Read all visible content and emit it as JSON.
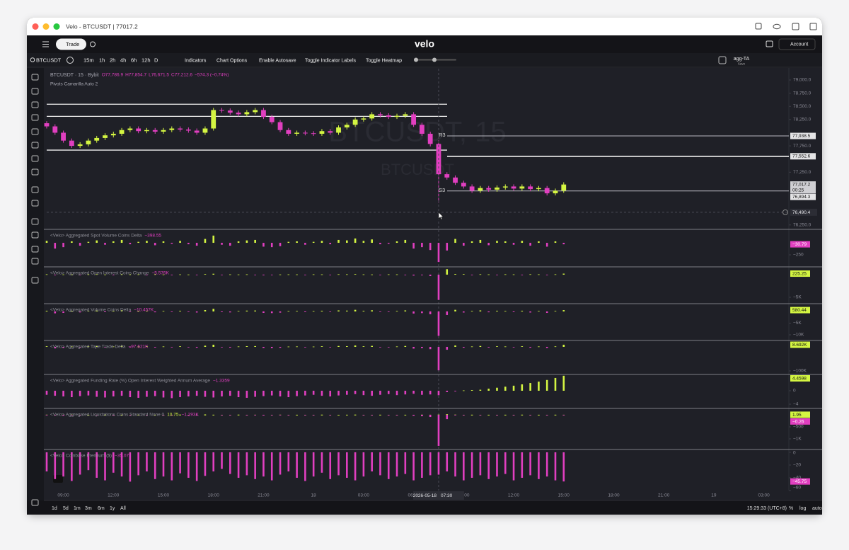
{
  "window": {
    "title": "Velo - BTCUSDT | 77017.2"
  },
  "header": {
    "trade": "Trade",
    "logo": "velo",
    "account": "Account"
  },
  "toolbar": {
    "symbol": "BTCUSDT",
    "intervals": [
      "15m",
      "1h",
      "2h",
      "4h",
      "6h",
      "12h",
      "D"
    ],
    "buttons": [
      "Indicators",
      "Chart Options",
      "Enable Autosave",
      "Toggle Indicator Labels",
      "Toggle Heatmap"
    ],
    "layout": "agg-TA",
    "save": "Save"
  },
  "chart_data": [
    {
      "type": "candlestick",
      "title": "BTCUSDT · 15 · Bybit",
      "legend": [
        "O77,786.9",
        "H77,854.7",
        "L76,671.5",
        "C77,212.6",
        "−574.3 (−0.74%)"
      ],
      "study": "Pivots Camarilla Auto 2",
      "watermark": [
        "BTCUSDT, 15",
        "BTCUSDT"
      ],
      "colors": {
        "up": "#d4f542",
        "down": "#e13fc0"
      },
      "xlim": [
        0,
        89
      ],
      "xticks": [
        {
          "value": 2,
          "label": "09:00"
        },
        {
          "value": 8,
          "label": "12:00"
        },
        {
          "value": 14,
          "label": "15:00"
        },
        {
          "value": 20,
          "label": "18:00"
        },
        {
          "value": 26,
          "label": "21:00"
        },
        {
          "value": 32,
          "label": "18"
        },
        {
          "value": 38,
          "label": "03:00"
        },
        {
          "value": 44,
          "label": "06:00"
        },
        {
          "value": 50,
          "label": "09:00"
        },
        {
          "value": 56,
          "label": "12:00"
        },
        {
          "value": 62,
          "label": "15:00"
        },
        {
          "value": 68,
          "label": "18:00"
        },
        {
          "value": 74,
          "label": "21:00"
        },
        {
          "value": 80,
          "label": "19"
        },
        {
          "value": 86,
          "label": "03:00"
        }
      ],
      "ylim": [
        76180,
        79215
      ],
      "yticks": [
        {
          "value": 79000,
          "label": "79,000.0"
        },
        {
          "value": 78750,
          "label": "78,750.0"
        },
        {
          "value": 78500,
          "label": "78,500.0"
        },
        {
          "value": 78250,
          "label": "78,250.0"
        },
        {
          "value": 77750,
          "label": "77,750.0"
        },
        {
          "value": 77250,
          "label": "77,250.0"
        },
        {
          "value": 76250,
          "label": "76,250.0"
        }
      ],
      "open": [
        78180,
        78120,
        78000,
        77850,
        77750,
        77780,
        77850,
        77900,
        77950,
        77980,
        78050,
        78080,
        78030,
        78050,
        78020,
        78050,
        78080,
        78060,
        78040,
        78000,
        78080,
        78430,
        78420,
        78380,
        78350,
        78390,
        78430,
        78300,
        78200,
        78050,
        77980,
        78000,
        77990,
        77980,
        78030,
        78000,
        78100,
        78150,
        78250,
        78270,
        78350,
        78330,
        78300,
        78320,
        78350,
        78150,
        77980,
        77786.9,
        77212.6,
        77150,
        77050,
        76980,
        76900,
        76950,
        76920,
        76960,
        76980,
        76940,
        76980,
        76930,
        76950,
        76850,
        76900
      ],
      "high": [
        78220,
        78160,
        78040,
        77890,
        77820,
        77890,
        77940,
        77990,
        78020,
        78090,
        78120,
        78120,
        78090,
        78090,
        78090,
        78120,
        78120,
        78100,
        78080,
        78120,
        78470,
        78470,
        78460,
        78420,
        78430,
        78470,
        78470,
        78340,
        78240,
        78090,
        78040,
        78040,
        78030,
        78070,
        78070,
        78140,
        78190,
        78290,
        78310,
        78390,
        78390,
        78370,
        78360,
        78390,
        78390,
        78190,
        78020,
        77854.7,
        77250,
        77190,
        77090,
        77020,
        76990,
        76990,
        77000,
        77020,
        77020,
        77020,
        77020,
        76990,
        76990,
        76940,
        77060
      ],
      "low": [
        78080,
        77960,
        77810,
        77710,
        77710,
        77740,
        77810,
        77860,
        77910,
        77940,
        78010,
        77990,
        77990,
        77980,
        77980,
        78010,
        78020,
        78000,
        77960,
        77960,
        78040,
        78380,
        78340,
        78310,
        78310,
        78350,
        78260,
        78160,
        78010,
        77940,
        77940,
        77950,
        77940,
        77940,
        77960,
        77960,
        78060,
        78110,
        78210,
        78230,
        78290,
        78260,
        78260,
        78280,
        78110,
        77940,
        77740,
        76671.5,
        77110,
        77010,
        76940,
        76860,
        76860,
        76880,
        76880,
        76920,
        76900,
        76900,
        76890,
        76890,
        76810,
        76810,
        76860
      ],
      "close": [
        78120,
        78000,
        77850,
        77750,
        77780,
        77850,
        77900,
        77950,
        77980,
        78050,
        78080,
        78030,
        78050,
        78020,
        78050,
        78080,
        78060,
        78040,
        78000,
        78080,
        78430,
        78420,
        78380,
        78350,
        78390,
        78430,
        78300,
        78200,
        78050,
        77980,
        78000,
        77990,
        77980,
        78030,
        78000,
        78100,
        78150,
        78250,
        78270,
        78350,
        78330,
        78300,
        78320,
        78350,
        78150,
        77980,
        77786.9,
        77212.6,
        77150,
        77050,
        76980,
        76900,
        76950,
        76920,
        76960,
        76980,
        76940,
        76980,
        76930,
        76950,
        76850,
        76900,
        77017.2
      ],
      "prior_pivots": [
        78540,
        78310,
        77670
      ],
      "pivots": [
        {
          "label": "R3",
          "value": 77938.5,
          "tag": "77,938.5"
        },
        {
          "value": 77552.6,
          "tag": "77,552.6"
        },
        {
          "label": "S3",
          "value": 76894.3,
          "tag": "76,894.3"
        }
      ],
      "last": {
        "value": 77017.2,
        "label": "77,017.2"
      },
      "countdown": "00:25",
      "crosshair": {
        "x": 47,
        "date": "2026-05-18",
        "time": "07:30",
        "price": {
          "value": 76490.4,
          "label": "76,490.4"
        }
      }
    },
    {
      "type": "bar",
      "title": "<Velo> Aggregated Spot Volume Coins Delta",
      "readouts": [
        "−398.55"
      ],
      "ylim": [
        -485,
        265
      ],
      "yticks": [
        {
          "value": -250,
          "label": "−250"
        }
      ],
      "series": [
        {
          "values": [
            40,
            -120,
            -90,
            30,
            -60,
            20,
            50,
            -40,
            30,
            60,
            -30,
            20,
            40,
            -50,
            30,
            -20,
            40,
            -30,
            -60,
            80,
            150,
            -40,
            -60,
            30,
            50,
            60,
            -80,
            -90,
            -70,
            20,
            30,
            -40,
            20,
            40,
            -30,
            60,
            50,
            90,
            40,
            70,
            -30,
            -20,
            30,
            60,
            -120,
            -90,
            -150,
            -398.55,
            -160,
            80,
            -60,
            30,
            60,
            -50,
            40,
            30,
            -40,
            40,
            -60,
            30,
            -80,
            30,
            -30.79
          ]
        }
      ],
      "last": [
        {
          "value": -30.79,
          "label": "−30.79"
        }
      ]
    },
    {
      "type": "bar",
      "title": "<Velo> Aggregated Open Interest Coins Change",
      "readouts": [
        "−5.576K"
      ],
      "ylim": [
        -6250,
        1560
      ],
      "yticks": [
        {
          "value": -5000,
          "label": "−5K"
        }
      ],
      "series": [
        {
          "values": [
            80,
            -60,
            50,
            40,
            -120,
            60,
            90,
            30,
            -40,
            70,
            50,
            60,
            -30,
            80,
            40,
            -50,
            60,
            30,
            -80,
            120,
            200,
            -90,
            60,
            40,
            70,
            -60,
            -150,
            -80,
            40,
            60,
            50,
            -40,
            70,
            60,
            -30,
            90,
            80,
            120,
            60,
            40,
            -50,
            70,
            60,
            -40,
            -200,
            -150,
            -300,
            -5576,
            1200,
            150,
            120,
            -80,
            90,
            60,
            -70,
            80,
            60,
            -50,
            90,
            70,
            -60,
            80,
            225.25
          ]
        }
      ],
      "last": [
        {
          "value": 225.25,
          "label": "225.25"
        }
      ]
    },
    {
      "type": "bar",
      "title": "<Velo> Aggregated Volume Coins Delta",
      "readouts": [
        "−10.457K"
      ],
      "ylim": [
        -12120,
        3030
      ],
      "yticks": [
        {
          "value": -5000,
          "label": "−5K"
        },
        {
          "value": -10000,
          "label": "−10K"
        }
      ],
      "series": [
        {
          "values": [
            300,
            -800,
            -600,
            200,
            -400,
            250,
            400,
            -300,
            200,
            500,
            -200,
            150,
            300,
            -350,
            200,
            -150,
            300,
            -200,
            -450,
            600,
            1100,
            -300,
            -400,
            200,
            350,
            400,
            -600,
            -700,
            -500,
            150,
            200,
            -300,
            150,
            300,
            -200,
            450,
            350,
            700,
            300,
            500,
            -200,
            -150,
            200,
            450,
            -900,
            -700,
            -1200,
            -10457,
            -1500,
            700,
            -450,
            200,
            450,
            -350,
            300,
            200,
            -300,
            300,
            -450,
            200,
            -600,
            250,
            580.44
          ]
        }
      ],
      "last": [
        {
          "value": 580.44,
          "label": "580.44"
        }
      ]
    },
    {
      "type": "bar",
      "title": "<Velo> Aggregated Tape Trade Delta",
      "readouts": [
        "−97.621K"
      ],
      "ylim": [
        -111800,
        23500
      ],
      "yticks": [
        {
          "value": -100000,
          "label": "−100K"
        }
      ],
      "series": [
        {
          "values": [
            2400,
            -6400,
            -4800,
            1600,
            -3200,
            2000,
            3200,
            -2400,
            1600,
            4000,
            -1600,
            1200,
            2400,
            -2800,
            1600,
            -1200,
            2400,
            -1600,
            -3600,
            4800,
            8800,
            -2400,
            -3200,
            1600,
            2800,
            3200,
            -4800,
            -5600,
            -4000,
            1200,
            1600,
            -2400,
            1200,
            2400,
            -1600,
            3600,
            2800,
            5600,
            2400,
            4000,
            -1600,
            -1200,
            1600,
            3600,
            -7200,
            -5600,
            -9600,
            -97621,
            -12000,
            5600,
            -3600,
            1600,
            3600,
            -2800,
            2400,
            1600,
            -2400,
            2400,
            -3600,
            1600,
            -4800,
            2000,
            8692
          ]
        }
      ],
      "last": [
        {
          "value": 8692,
          "label": "8.692K"
        }
      ]
    },
    {
      "type": "bar",
      "title": "<Velo> Aggregated Funding Rate (%) Open Interest Weighted Annum Average",
      "readouts": [
        "−1.3359"
      ],
      "ylim": [
        -5.05,
        4.63
      ],
      "yticks": [
        0,
        {
          "value": -4,
          "label": "−4"
        }
      ],
      "series": [
        {
          "values": [
            -1.2,
            -1.5,
            -1.7,
            -1.9,
            -1.6,
            -1.4,
            -1.8,
            -2.0,
            -1.7,
            -1.5,
            -1.9,
            -2.1,
            -1.8,
            -1.6,
            -2.0,
            -2.2,
            -1.9,
            -1.7,
            -1.5,
            -1.8,
            -2.0,
            -1.7,
            -1.5,
            -1.9,
            -2.1,
            -1.8,
            -1.6,
            -1.4,
            -1.7,
            -1.9,
            -1.6,
            -1.4,
            -1.2,
            -1.5,
            -1.7,
            -1.4,
            -1.2,
            -1.0,
            -1.3,
            -1.5,
            -1.2,
            -1.0,
            -1.3,
            -1.1,
            -0.9,
            -1.2,
            -1.1,
            -1.3359,
            -0.4,
            -0.2,
            0.1,
            0.2,
            0.3,
            0.6,
            0.9,
            1.2,
            1.5,
            1.9,
            2.3,
            2.7,
            3.2,
            3.8,
            4.4598
          ]
        }
      ],
      "last": [
        {
          "value": 4.4598,
          "label": "4.4598"
        }
      ]
    },
    {
      "type": "bar",
      "title": "<Velo> Aggregated Liquidations Coins Standard None 0",
      "readouts": [
        "10.75",
        "−1.293K"
      ],
      "ylim": [
        -1412,
        235
      ],
      "yticks": [
        {
          "value": -500,
          "label": "−500"
        },
        {
          "value": -1000,
          "label": "−1K"
        }
      ],
      "series": [
        {
          "values": [
            5,
            0,
            3,
            8,
            0,
            2,
            0,
            12,
            0,
            4,
            0,
            6,
            0,
            3,
            0,
            0,
            9,
            0,
            2,
            15,
            4,
            0,
            0,
            7,
            0,
            3,
            0,
            0,
            5,
            0,
            2,
            0,
            0,
            6,
            0,
            0,
            3,
            8,
            0,
            0,
            4,
            0,
            0,
            2,
            0,
            6,
            3,
            10.75,
            25,
            8,
            0,
            4,
            0,
            2,
            0,
            3,
            0,
            5,
            0,
            2,
            0,
            4,
            1.95
          ]
        },
        {
          "values": [
            -10,
            -25,
            -40,
            -5,
            -15,
            0,
            -3,
            0,
            -8,
            0,
            -12,
            0,
            -4,
            0,
            -6,
            -2,
            0,
            -10,
            -20,
            0,
            0,
            -8,
            -15,
            0,
            -3,
            -5,
            -30,
            -20,
            -12,
            -4,
            0,
            -6,
            -3,
            0,
            -5,
            0,
            0,
            0,
            -4,
            -7,
            0,
            -3,
            -6,
            0,
            -40,
            -60,
            -90,
            -1293,
            -180,
            -20,
            -15,
            0,
            -5,
            0,
            -8,
            0,
            -3,
            0,
            -10,
            0,
            -12,
            0,
            -0.26
          ]
        }
      ],
      "last": [
        {
          "value": 1.95,
          "label": "1.95"
        },
        {
          "value": -0.26,
          "label": "−0.26"
        }
      ]
    },
    {
      "type": "bar",
      "title": "<Velo> Coinbase Premium ($)",
      "readouts": [
        "−35.07"
      ],
      "ylim": [
        -60,
        3.3
      ],
      "yticks": [
        0,
        {
          "value": -20,
          "label": "−20"
        },
        {
          "value": -40,
          "label": "−40"
        },
        {
          "value": -60,
          "label": "−60"
        }
      ],
      "series": [
        {
          "values": [
            -30,
            -42,
            -38,
            -45,
            -35,
            -28,
            -40,
            -44,
            -32,
            -38,
            -46,
            -36,
            -30,
            -42,
            -38,
            -44,
            -33,
            -40,
            -45,
            -37,
            -30,
            -26,
            -34,
            -40,
            -36,
            -42,
            -38,
            -44,
            -35,
            -30,
            -40,
            -45,
            -38,
            -32,
            -42,
            -36,
            -40,
            -44,
            -38,
            -30,
            -36,
            -42,
            -38,
            -34,
            -44,
            -40,
            -36,
            -35.07,
            -30,
            -38,
            -44,
            -40,
            -36,
            -42,
            -38,
            -34,
            -44,
            -40,
            -36,
            -42,
            -38,
            -44,
            -45.75
          ]
        }
      ],
      "last": [
        {
          "value": -45.75,
          "label": "−45.75"
        }
      ]
    }
  ],
  "footer": {
    "ranges": [
      "1d",
      "5d",
      "1m",
      "3m",
      "6m",
      "1y",
      "All"
    ],
    "clock": "15:29:33 (UTC+8)",
    "options": [
      "%",
      "log",
      "auto"
    ]
  }
}
